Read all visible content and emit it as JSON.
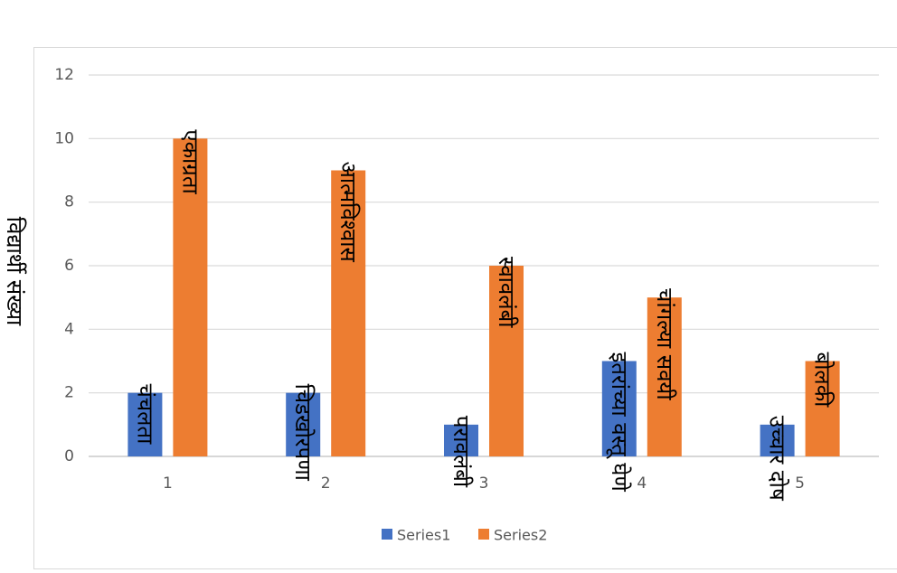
{
  "chart_data": {
    "type": "bar",
    "categories": [
      "1",
      "2",
      "3",
      "4",
      "5"
    ],
    "series": [
      {
        "name": "Series1",
        "color": "#4472C4",
        "values": [
          2,
          2,
          1,
          3,
          1
        ],
        "labels": [
          "चंचलता",
          "चिडखोरपणा",
          "परावलंबी",
          "इतरांच्या वस्तू घेणे",
          "उच्चार दोष"
        ]
      },
      {
        "name": "Series2",
        "color": "#ED7D31",
        "values": [
          10,
          9,
          6,
          5,
          3
        ],
        "labels": [
          "एकाग्रता",
          "आत्मविश्वास",
          "स्वावलंबी",
          "चांगल्या सवयी",
          "बोलकी"
        ]
      }
    ],
    "ylabel": "विद्यार्थी संख्या",
    "xlabel": "",
    "ylim": [
      0,
      12
    ],
    "yticks": [
      0,
      2,
      4,
      6,
      8,
      10,
      12
    ],
    "grid": true,
    "legend": "bottom"
  }
}
